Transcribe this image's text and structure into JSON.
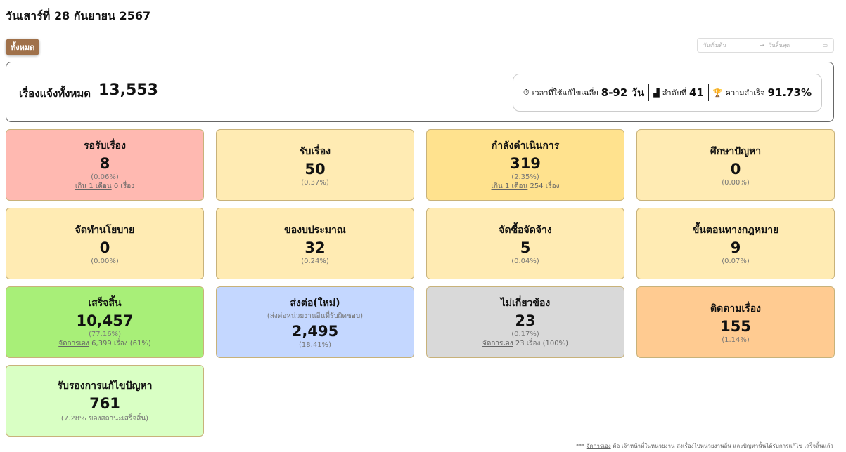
{
  "header": {
    "date": "วันเสาร์ที่ 28 กันยายน 2567",
    "filter_all": "ทั้งหมด",
    "date_start_placeholder": "วันเริ่มต้น",
    "date_end_placeholder": "วันสิ้นสุด"
  },
  "summary": {
    "label": "เรื่องแจ้งทั้งหมด",
    "total": "13,553",
    "avg_time_label": "เวลาที่ใช้แก้ไขเฉลี่ย",
    "avg_time": "8-92 วัน",
    "rank_label": "ลำดับที่",
    "rank": "41",
    "success_label": "ความสำเร็จ",
    "success": "91.73%"
  },
  "cards": [
    {
      "title": "รอรับเรื่อง",
      "value": "8",
      "percent": "(0.06%)",
      "extra_link": "เกิน 1 เดือน",
      "extra_text": "0 เรื่อง",
      "color": "#ffb9b1"
    },
    {
      "title": "รับเรื่อง",
      "value": "50",
      "percent": "(0.37%)",
      "color": "#ffebb3"
    },
    {
      "title": "กำลังดำเนินการ",
      "value": "319",
      "percent": "(2.35%)",
      "extra_link": "เกิน 1 เดือน",
      "extra_text": "254 เรื่อง",
      "color": "#ffe28e"
    },
    {
      "title": "ศึกษาปัญหา",
      "value": "0",
      "percent": "(0.00%)",
      "color": "#ffebb3"
    },
    {
      "title": "จัดทำนโยบาย",
      "value": "0",
      "percent": "(0.00%)",
      "color": "#ffebb3"
    },
    {
      "title": "ของบประมาณ",
      "value": "32",
      "percent": "(0.24%)",
      "color": "#ffebb3"
    },
    {
      "title": "จัดซื้อจัดจ้าง",
      "value": "5",
      "percent": "(0.04%)",
      "color": "#ffebb3"
    },
    {
      "title": "ขั้นตอนทางกฎหมาย",
      "value": "9",
      "percent": "(0.07%)",
      "color": "#ffebb3"
    },
    {
      "title": "เสร็จสิ้น",
      "value": "10,457",
      "percent": "(77.16%)",
      "extra_link": "จัดการเอง",
      "extra_text": "6,399 เรื่อง (61%)",
      "color": "#a8ef78"
    },
    {
      "title": "ส่งต่อ(ใหม่)",
      "subtitle": "(ส่งต่อหน่วยงานอื่นที่รับผิดชอบ)",
      "value": "2,495",
      "percent": "(18.41%)",
      "color": "#c4d7ff"
    },
    {
      "title": "ไม่เกี่ยวข้อง",
      "value": "23",
      "percent": "(0.17%)",
      "extra_link": "จัดการเอง",
      "extra_text": "23 เรื่อง (100%)",
      "color": "#d9d9d9"
    },
    {
      "title": "ติดตามเรื่อง",
      "value": "155",
      "percent": "(1.14%)",
      "color": "#ffcb91"
    },
    {
      "title": "รับรองการแก้ไขปัญหา",
      "value": "761",
      "percent": "(7.28% ของสถานะเสร็จสิ้น)",
      "color": "#d9ffc4"
    }
  ],
  "footnote": {
    "prefix": "***",
    "link": "จัดการเอง",
    "text": "คือ เจ้าหน้าที่ในหน่วยงาน ส่งเรื่องไปหน่วยงานอื่น และปัญหานั้นได้รับการแก้ไข เสร็จสิ้นแล้ว"
  }
}
